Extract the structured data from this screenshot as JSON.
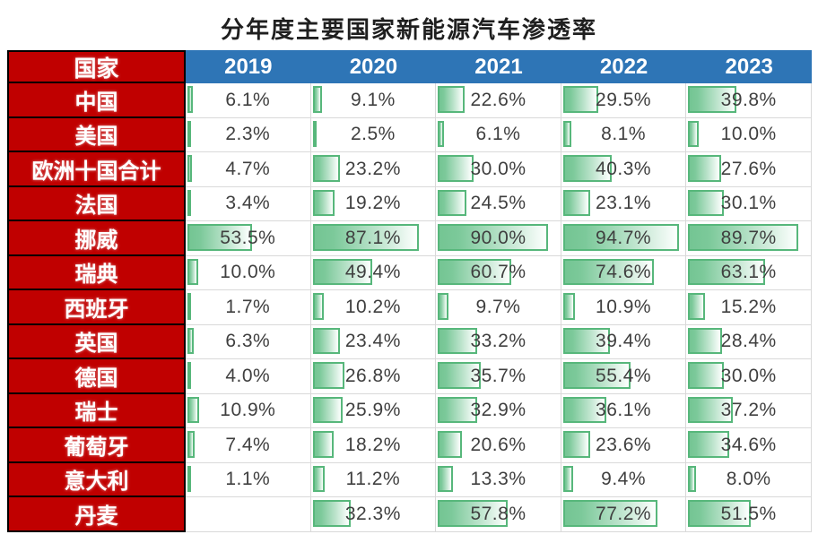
{
  "chart_data": {
    "type": "table",
    "title": "分年度主要国家新能源汽车渗透率",
    "country_header": "国家",
    "years": [
      "2019",
      "2020",
      "2021",
      "2022",
      "2023"
    ],
    "unit": "%",
    "bar_scale": {
      "min": 0,
      "max": 100
    },
    "rows": [
      {
        "country": "中国",
        "values": [
          6.1,
          9.1,
          22.6,
          29.5,
          39.8
        ]
      },
      {
        "country": "美国",
        "values": [
          2.3,
          2.5,
          6.1,
          8.1,
          10.0
        ]
      },
      {
        "country": "欧洲十国合计",
        "values": [
          4.7,
          23.2,
          30.0,
          40.3,
          27.6
        ]
      },
      {
        "country": "法国",
        "values": [
          3.4,
          19.2,
          24.5,
          23.1,
          30.1
        ]
      },
      {
        "country": "挪威",
        "values": [
          53.5,
          87.1,
          90.0,
          94.7,
          89.7
        ]
      },
      {
        "country": "瑞典",
        "values": [
          10.0,
          49.4,
          60.7,
          74.6,
          63.1
        ]
      },
      {
        "country": "西班牙",
        "values": [
          1.7,
          10.2,
          9.7,
          10.9,
          15.2
        ]
      },
      {
        "country": "英国",
        "values": [
          6.3,
          23.4,
          33.2,
          39.4,
          28.4
        ]
      },
      {
        "country": "德国",
        "values": [
          4.0,
          26.8,
          35.7,
          55.4,
          30.0
        ]
      },
      {
        "country": "瑞士",
        "values": [
          10.9,
          25.9,
          32.9,
          36.1,
          37.2
        ]
      },
      {
        "country": "葡萄牙",
        "values": [
          7.4,
          18.2,
          20.6,
          23.6,
          34.6
        ]
      },
      {
        "country": "意大利",
        "values": [
          1.1,
          11.2,
          13.3,
          9.4,
          8.0
        ]
      },
      {
        "country": "丹麦",
        "values": [
          null,
          32.3,
          57.8,
          77.2,
          51.5
        ]
      }
    ],
    "colors": {
      "header_blue": "#2E75B6",
      "country_red": "#C00000",
      "bar_border_green": "#57B77B",
      "bar_fill_green": "#74C593",
      "grid_line": "#D9D9D9",
      "value_text": "#3F3F3F",
      "cell_border_black": "#000000"
    }
  }
}
